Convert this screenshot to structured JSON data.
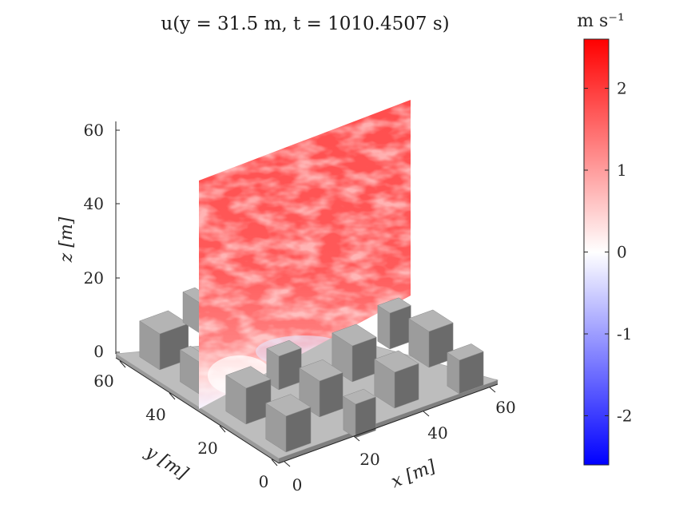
{
  "chart_data": {
    "type": "heatmap",
    "title": "u(y = 31.5 m, t = 1010.4507 s)",
    "xlabel": "x [m]",
    "ylabel": "y [m]",
    "zlabel": "z [m]",
    "x_ticks": [
      "0",
      "20",
      "40",
      "60"
    ],
    "y_ticks": [
      "0",
      "20",
      "40",
      "60"
    ],
    "z_ticks": [
      "0",
      "20",
      "40",
      "60"
    ],
    "xlim": [
      0,
      64
    ],
    "ylim": [
      0,
      64
    ],
    "zlim": [
      0,
      64
    ],
    "slice": {
      "plane": "y",
      "y": 31.5,
      "t": 1010.4507
    },
    "colorbar": {
      "unit": "m s⁻¹",
      "limits": [
        -2.6,
        2.6
      ],
      "ticks": [
        "-2",
        "-1",
        "0",
        "1",
        "2"
      ],
      "tick_values": [
        -2,
        -1,
        0,
        1,
        2
      ],
      "colormap": [
        "#0000ff",
        "#ffffff",
        "#ff0000"
      ]
    },
    "obstacles": "staggered cube array on ground plane",
    "colors": {
      "cube_top": "#b4b4b4",
      "cube_front": "#9c9c9c",
      "cube_side": "#6b6b6b",
      "ground": "#bdbdbd"
    }
  }
}
